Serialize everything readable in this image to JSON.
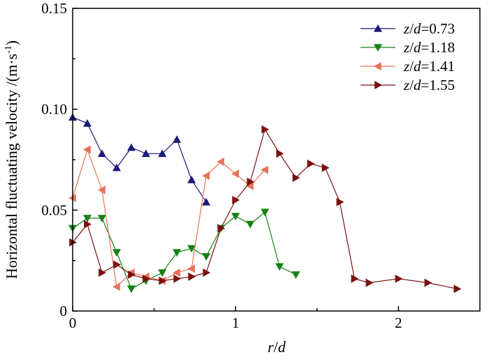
{
  "chart_data": {
    "type": "line",
    "title": "",
    "xlabel": {
      "italic": "r",
      "sep": "/",
      "italic2": "d"
    },
    "ylabel": {
      "text": "Horizontal fluctuating velocity /(m·s",
      "sup": "-1",
      "close": ")"
    },
    "xlim": [
      0,
      2.5
    ],
    "ylim": [
      0,
      0.15
    ],
    "xticks": [
      0,
      1,
      2
    ],
    "xtick_labels": [
      "0",
      "1",
      "2"
    ],
    "yticks": [
      0,
      0.05,
      0.1,
      0.15
    ],
    "ytick_labels": [
      "0",
      "0.05",
      "0.10",
      "0.15"
    ],
    "grid": false,
    "legend_position": "top-right",
    "series": [
      {
        "name": "z/d=0.73",
        "label_italic": "z",
        "label_sep": "/",
        "label_italic2": "d",
        "label_value": "=0.73",
        "color": "#1a1a7a",
        "marker": "triangle-up",
        "x": [
          0.0,
          0.09,
          0.18,
          0.27,
          0.36,
          0.45,
          0.55,
          0.64,
          0.73,
          0.82
        ],
        "y": [
          0.096,
          0.093,
          0.078,
          0.071,
          0.081,
          0.078,
          0.078,
          0.085,
          0.065,
          0.054
        ]
      },
      {
        "name": "z/d=1.18",
        "label_italic": "z",
        "label_sep": "/",
        "label_italic2": "d",
        "label_value": "=1.18",
        "color": "#148214",
        "marker": "triangle-down",
        "x": [
          0.0,
          0.09,
          0.18,
          0.27,
          0.36,
          0.45,
          0.55,
          0.64,
          0.73,
          0.82,
          0.91,
          1.0,
          1.09,
          1.18,
          1.27,
          1.37
        ],
        "y": [
          0.041,
          0.046,
          0.046,
          0.029,
          0.011,
          0.015,
          0.019,
          0.029,
          0.031,
          0.027,
          0.041,
          0.047,
          0.043,
          0.049,
          0.022,
          0.018
        ]
      },
      {
        "name": "z/d=1.41",
        "label_italic": "z",
        "label_sep": "/",
        "label_italic2": "d",
        "label_value": "=1.41",
        "color": "#e8735a",
        "marker": "triangle-left",
        "x": [
          0.0,
          0.09,
          0.18,
          0.27,
          0.36,
          0.45,
          0.55,
          0.64,
          0.73,
          0.82,
          0.91,
          1.0,
          1.09,
          1.18
        ],
        "y": [
          0.056,
          0.08,
          0.06,
          0.012,
          0.019,
          0.017,
          0.015,
          0.019,
          0.021,
          0.067,
          0.074,
          0.068,
          0.062,
          0.07
        ]
      },
      {
        "name": "z/d=1.55",
        "label_italic": "z",
        "label_sep": "/",
        "label_italic2": "d",
        "label_value": "=1.55",
        "color": "#7a1010",
        "marker": "triangle-right",
        "x": [
          0.0,
          0.09,
          0.18,
          0.27,
          0.36,
          0.45,
          0.55,
          0.64,
          0.73,
          0.82,
          0.91,
          1.0,
          1.09,
          1.18,
          1.27,
          1.37,
          1.46,
          1.55,
          1.64,
          1.73,
          1.82,
          2.0,
          2.18,
          2.36
        ],
        "y": [
          0.034,
          0.043,
          0.019,
          0.023,
          0.018,
          0.016,
          0.015,
          0.016,
          0.017,
          0.019,
          0.041,
          0.055,
          0.064,
          0.09,
          0.078,
          0.066,
          0.073,
          0.071,
          0.054,
          0.016,
          0.014,
          0.016,
          0.014,
          0.011
        ]
      }
    ]
  }
}
